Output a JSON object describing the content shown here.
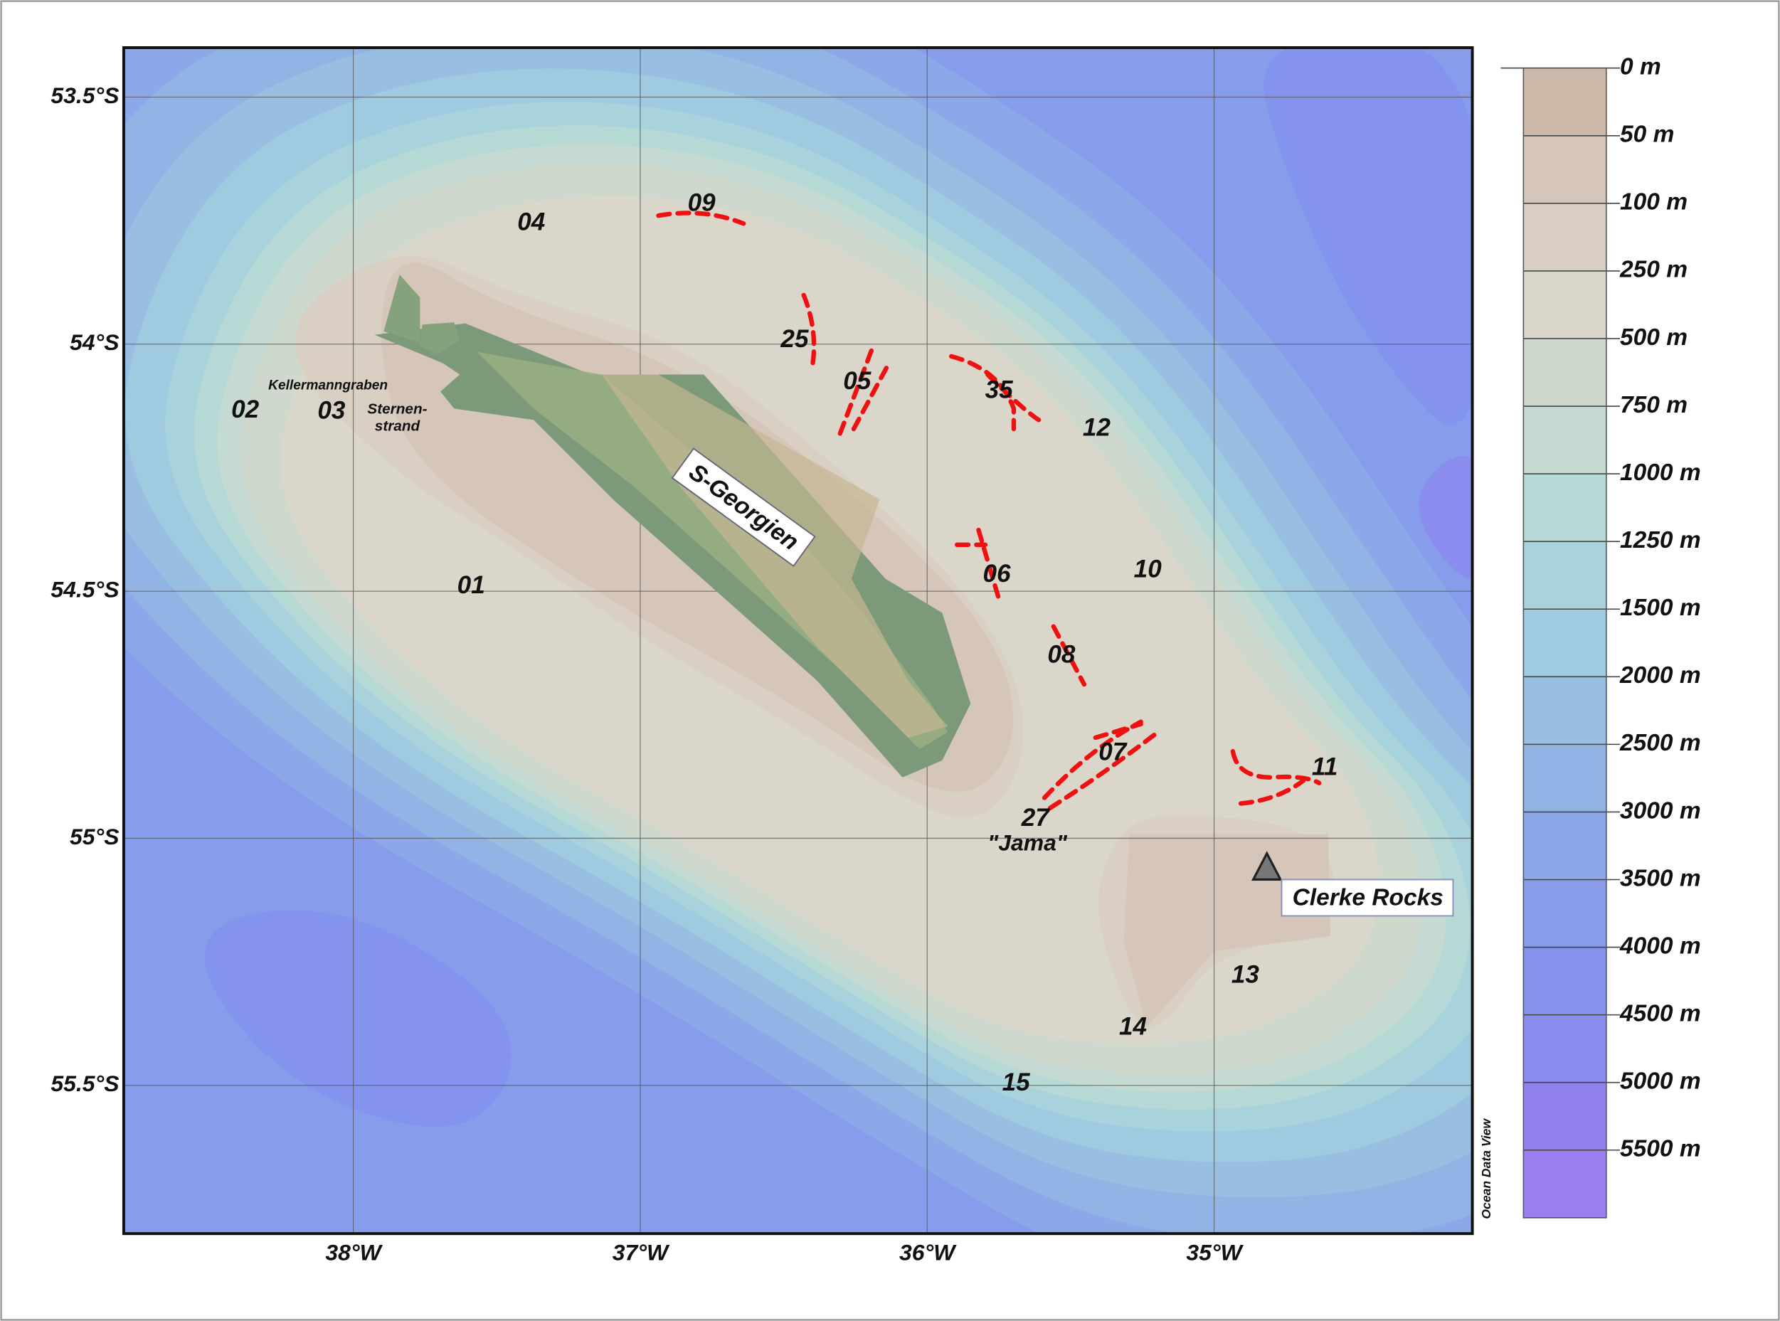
{
  "map": {
    "xlim": [
      38.8,
      34.1
    ],
    "ylim": [
      53.4,
      55.8
    ],
    "xticks": [
      {
        "value": 38,
        "label": "38°W"
      },
      {
        "value": 37,
        "label": "37°W"
      },
      {
        "value": 36,
        "label": "36°W"
      },
      {
        "value": 35,
        "label": "35°W"
      }
    ],
    "yticks": [
      {
        "value": 53.5,
        "label": "53.5°S"
      },
      {
        "value": 54,
        "label": "54°S"
      },
      {
        "value": 54.5,
        "label": "54.5°S"
      },
      {
        "value": 55,
        "label": "55°S"
      },
      {
        "value": 55.5,
        "label": "55.5°S"
      }
    ],
    "stations": [
      "09",
      "04",
      "25",
      "05",
      "35",
      "12",
      "02",
      "03",
      "01",
      "10",
      "06",
      "08",
      "07",
      "11",
      "27",
      "13",
      "14",
      "15"
    ],
    "places": {
      "kellermanngraben": "Kellermanngraben",
      "sternenstrand": [
        "Sternen-",
        "strand"
      ],
      "island": "S-Georgien",
      "jama": "\"Jama\"",
      "clerke_rocks": "Clerke Rocks"
    },
    "credit": "Ocean Data View",
    "legend": {
      "levels": [
        {
          "value": 0,
          "label": "0 m",
          "color": "#cdb9aa"
        },
        {
          "value": 50,
          "label": "50 m",
          "color": "#d5c6b9"
        },
        {
          "value": 100,
          "label": "100 m",
          "color": "#d9cfc2"
        },
        {
          "value": 250,
          "label": "250 m",
          "color": "#dad6c9"
        },
        {
          "value": 500,
          "label": "500 m",
          "color": "#cfd8cd"
        },
        {
          "value": 750,
          "label": "750 m",
          "color": "#c4dad2"
        },
        {
          "value": 1000,
          "label": "1000 m",
          "color": "#b6d9d6"
        },
        {
          "value": 1250,
          "label": "1250 m",
          "color": "#a9d3dc"
        },
        {
          "value": 1500,
          "label": "1500 m",
          "color": "#9fcadf"
        },
        {
          "value": 2000,
          "label": "2000 m",
          "color": "#98bfe2"
        },
        {
          "value": 2500,
          "label": "2500 m",
          "color": "#92b4e5"
        },
        {
          "value": 3000,
          "label": "3000 m",
          "color": "#8ca8e8"
        },
        {
          "value": 3500,
          "label": "3500 m",
          "color": "#879deb"
        },
        {
          "value": 4000,
          "label": "4000 m",
          "color": "#8494ee"
        },
        {
          "value": 4500,
          "label": "4500 m",
          "color": "#8a8cee"
        },
        {
          "value": 5000,
          "label": "5000 m",
          "color": "#9182ee"
        },
        {
          "value": 5500,
          "label": "5500 m",
          "color": "#9b7ef0"
        }
      ]
    }
  }
}
